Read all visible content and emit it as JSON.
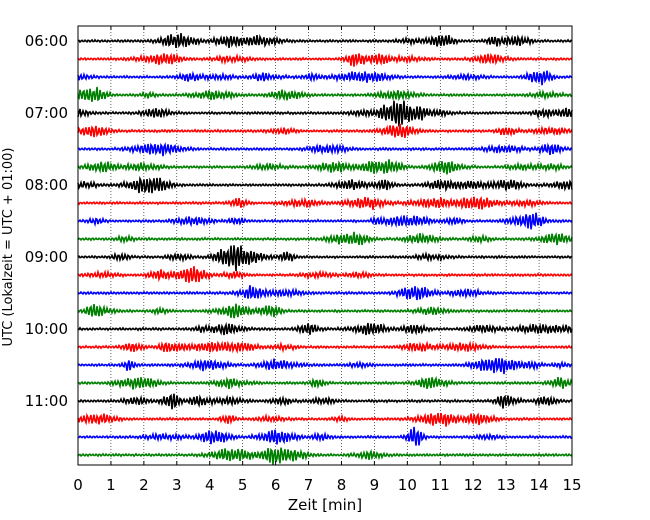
{
  "chart_data": {
    "type": "line",
    "title": "",
    "xlabel": "Zeit  [min]",
    "ylabel": "UTC (Lokalzeit = UTC + 01:00)",
    "xlim": [
      0,
      15
    ],
    "x_ticks": [
      "0",
      "1",
      "2",
      "3",
      "4",
      "5",
      "6",
      "7",
      "8",
      "9",
      "10",
      "11",
      "12",
      "13",
      "14",
      "15"
    ],
    "y_tick_labels": [
      "06:00",
      "07:00",
      "08:00",
      "09:00",
      "10:00",
      "11:00"
    ],
    "grid": "vertical dotted",
    "trace_colors": [
      "#000000",
      "#ff0000",
      "#0000ff",
      "#008000"
    ],
    "traces_start": [
      "06:00",
      "06:15",
      "06:30",
      "06:45",
      "07:00",
      "07:15",
      "07:30",
      "07:45",
      "08:00",
      "08:15",
      "08:30",
      "08:45",
      "09:00",
      "09:15",
      "09:30",
      "09:45",
      "10:00",
      "10:15",
      "10:30",
      "10:45",
      "11:00",
      "11:15",
      "11:30",
      "11:45"
    ],
    "trace_minutes": 15
  }
}
